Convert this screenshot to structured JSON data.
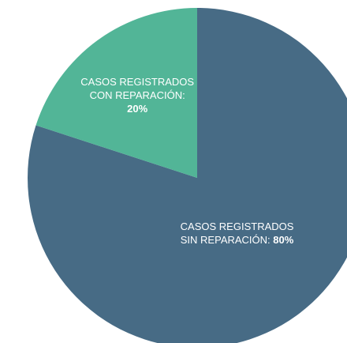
{
  "chart_data": {
    "type": "pie",
    "categories": [
      "CASOS REGISTRADOS SIN REPARACIÓN:",
      "CASOS REGISTRADOS CON REPARACIÓN:"
    ],
    "values": [
      80,
      20
    ],
    "value_labels": [
      "80%",
      "20%"
    ],
    "colors": [
      "#476b85",
      "#52b597"
    ]
  }
}
